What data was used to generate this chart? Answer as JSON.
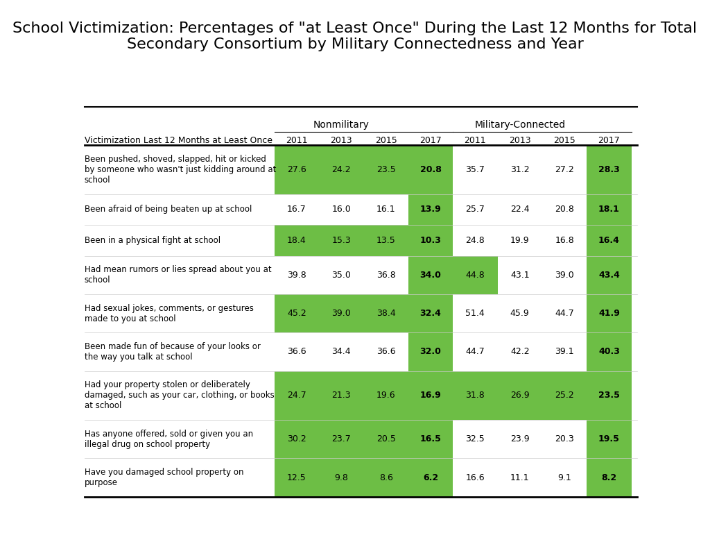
{
  "title": "School Victimization: Percentages of \"at Least Once\" During the Last 12 Months for Total\nSecondary Consortium by Military Connectedness and Year",
  "header_group1": "Nonmilitary",
  "header_group2": "Military-Connected",
  "col_header": "Victimization Last 12 Months at Least Once",
  "years": [
    "2011",
    "2013",
    "2015",
    "2017",
    "2011",
    "2013",
    "2015",
    "2017"
  ],
  "rows": [
    {
      "label": "Been pushed, shoved, slapped, hit or kicked\nby someone who wasn't just kidding around at\nschool",
      "values": [
        27.6,
        24.2,
        23.5,
        20.8,
        35.7,
        31.2,
        27.2,
        28.3
      ],
      "green_cols": [
        0,
        1,
        2,
        3,
        7
      ]
    },
    {
      "label": "Been afraid of being beaten up at school",
      "values": [
        16.7,
        16.0,
        16.1,
        13.9,
        25.7,
        22.4,
        20.8,
        18.1
      ],
      "green_cols": [
        3,
        7
      ]
    },
    {
      "label": "Been in a physical fight at school",
      "values": [
        18.4,
        15.3,
        13.5,
        10.3,
        24.8,
        19.9,
        16.8,
        16.4
      ],
      "green_cols": [
        0,
        1,
        2,
        3,
        7
      ]
    },
    {
      "label": "Had mean rumors or lies spread about you at\nschool",
      "values": [
        39.8,
        35.0,
        36.8,
        34.0,
        44.8,
        43.1,
        39.0,
        43.4
      ],
      "green_cols": [
        3,
        4,
        7
      ]
    },
    {
      "label": "Had sexual jokes, comments, or gestures\nmade to you at school",
      "values": [
        45.2,
        39.0,
        38.4,
        32.4,
        51.4,
        45.9,
        44.7,
        41.9
      ],
      "green_cols": [
        0,
        1,
        2,
        3,
        7
      ]
    },
    {
      "label": "Been made fun of because of your looks or\nthe way you talk at school",
      "values": [
        36.6,
        34.4,
        36.6,
        32.0,
        44.7,
        42.2,
        39.1,
        40.3
      ],
      "green_cols": [
        3,
        7
      ]
    },
    {
      "label": "Had your property stolen or deliberately\ndamaged, such as your car, clothing, or books\nat school",
      "values": [
        24.7,
        21.3,
        19.6,
        16.9,
        31.8,
        26.9,
        25.2,
        23.5
      ],
      "green_cols": [
        0,
        1,
        2,
        3,
        4,
        5,
        6,
        7
      ]
    },
    {
      "label": "Has anyone offered, sold or given you an\nillegal drug on school property",
      "values": [
        30.2,
        23.7,
        20.5,
        16.5,
        32.5,
        23.9,
        20.3,
        19.5
      ],
      "green_cols": [
        0,
        1,
        2,
        3,
        7
      ]
    },
    {
      "label": "Have you damaged school property on\npurpose",
      "values": [
        12.5,
        9.8,
        8.6,
        6.2,
        16.6,
        11.1,
        9.1,
        8.2
      ],
      "green_cols": [
        0,
        1,
        2,
        3,
        7
      ]
    }
  ],
  "green_color": "#6DBE45",
  "white_color": "#FFFFFF",
  "bold_cols": [
    3,
    7
  ],
  "title_fontsize": 16,
  "background_color": "#FFFFFF"
}
